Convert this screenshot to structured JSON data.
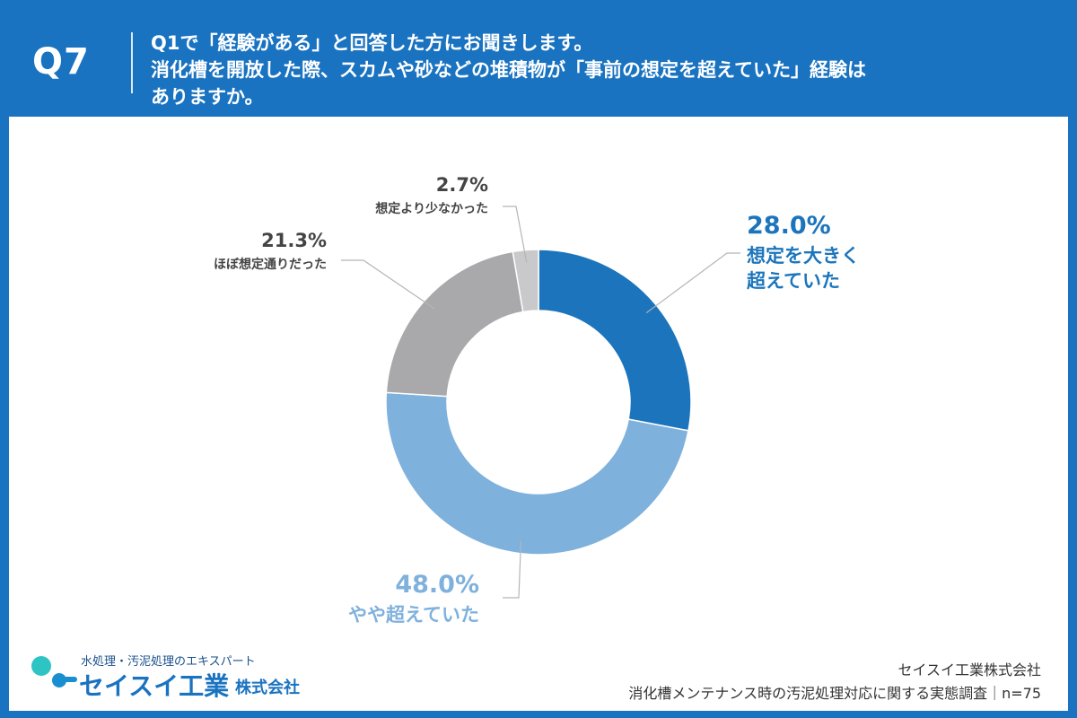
{
  "header": {
    "question_number": "Q7",
    "question_lines": [
      "Q1で「経験がある」と回答した方にお聞きします。",
      "消化槽を開放した際、スカムや砂などの堆積物が「事前の想定を超えていた」経験は",
      "ありますか。"
    ]
  },
  "chart_data": {
    "type": "pie",
    "donut": true,
    "start_angle": "12 o'clock",
    "direction": "clockwise",
    "slices": [
      {
        "label_lines": [
          "想定を大きく",
          "超えていた"
        ],
        "value": 28.0,
        "value_label": "28.0%",
        "color": "#1c75bc"
      },
      {
        "label_lines": [
          "やや超えていた"
        ],
        "value": 48.0,
        "value_label": "48.0%",
        "color": "#7fb1dd"
      },
      {
        "label_lines": [
          "ほぼ想定通りだった"
        ],
        "value": 21.3,
        "value_label": "21.3%",
        "color": "#a9a8ab"
      },
      {
        "label_lines": [
          "想定より少なかった"
        ],
        "value": 2.7,
        "value_label": "2.7%",
        "color": "#c9c8ca"
      }
    ]
  },
  "footer": {
    "brand_tagline": "水処理・汚泥処理のエキスパート",
    "brand_name": "セイスイ工業",
    "brand_suffix": "株式会社",
    "company": "セイスイ工業株式会社",
    "survey": "消化槽メンテナンス時の汚泥処理対応に関する実態調査｜n=75"
  },
  "colors": {
    "background": "#1a73c0",
    "card": "#ffffff",
    "brand": "#1a73c0"
  }
}
